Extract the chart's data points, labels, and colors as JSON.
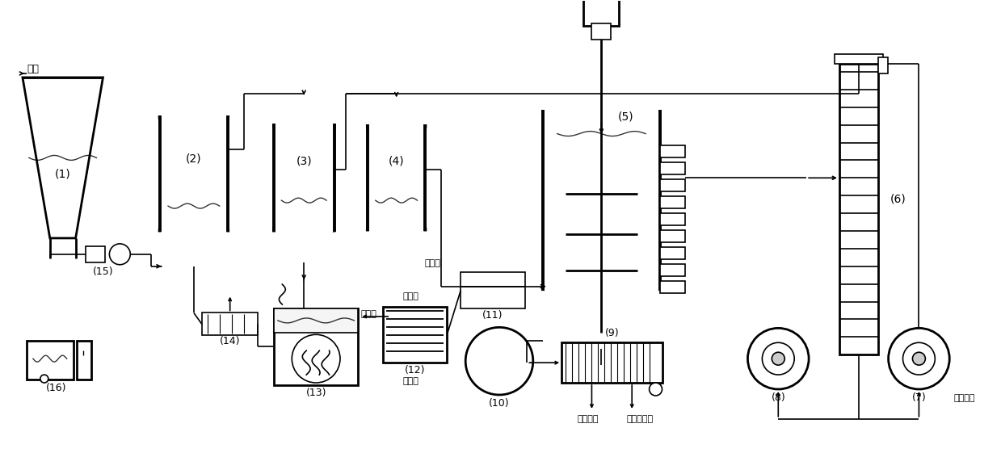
{
  "bg_color": "#ffffff",
  "line_color": "#000000",
  "labels": {
    "1": "(1)",
    "2": "(2)",
    "3": "(3)",
    "4": "(4)",
    "5": "(5)",
    "6": "(6)",
    "7": "(7)",
    "8": "(8)",
    "9": "(9)",
    "10": "(10)",
    "11": "(11)",
    "12": "(12)",
    "13": "(13)",
    "14": "(14)",
    "15": "(15)",
    "16": "(16)"
  },
  "text_wuni": "污泥",
  "text_ruoshui": "软化水",
  "text_lengshuiIn": "冷却水",
  "text_lengshuiOut": "冷却水",
  "text_tuoshui": "脱水滤汲",
  "text_youji": "有机营养土",
  "text_guolv": "膜过滤汲"
}
